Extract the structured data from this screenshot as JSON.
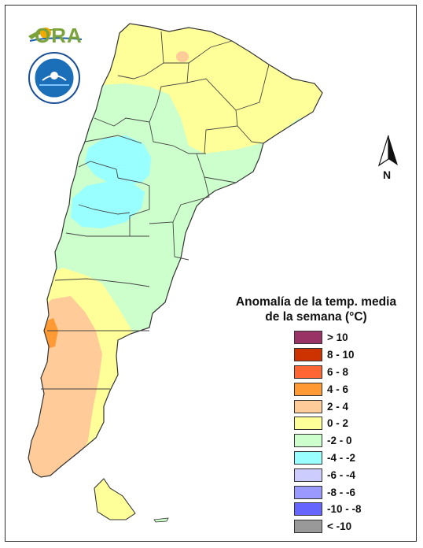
{
  "branding": {
    "ora_logo_text": "ORA",
    "smn_seal_icon": "smn-seal-icon"
  },
  "compass": {
    "label": "N",
    "icon": "north-arrow-icon"
  },
  "legend": {
    "title_line1": "Anomalía de la temp. media",
    "title_line2": "de la semana (°C)",
    "items": [
      {
        "label": "> 10",
        "color": "#993366"
      },
      {
        "label": "8 - 10",
        "color": "#cc3300"
      },
      {
        "label": "6 - 8",
        "color": "#ff6633"
      },
      {
        "label": "4 - 6",
        "color": "#ff9933"
      },
      {
        "label": "2 - 4",
        "color": "#ffcc99"
      },
      {
        "label": "0 - 2",
        "color": "#ffff99"
      },
      {
        "label": "-2 - 0",
        "color": "#ccffcc"
      },
      {
        "label": "-4 - -2",
        "color": "#99ffff"
      },
      {
        "label": "-6 - -4",
        "color": "#ccccff"
      },
      {
        "label": "-8 - -6",
        "color": "#9999ff"
      },
      {
        "label": "-10 - -8",
        "color": "#6666ff"
      },
      {
        "label": "< -10",
        "color": "#999999"
      }
    ]
  },
  "map": {
    "region": "Argentina",
    "palette": {
      "warm_2_4": "#ffcc99",
      "warm_4_6": "#ff9933",
      "warm_0_2": "#ffff99",
      "cool_m2_0": "#ccffcc",
      "cool_m4_m2": "#99ffff",
      "border": "#333333"
    }
  }
}
